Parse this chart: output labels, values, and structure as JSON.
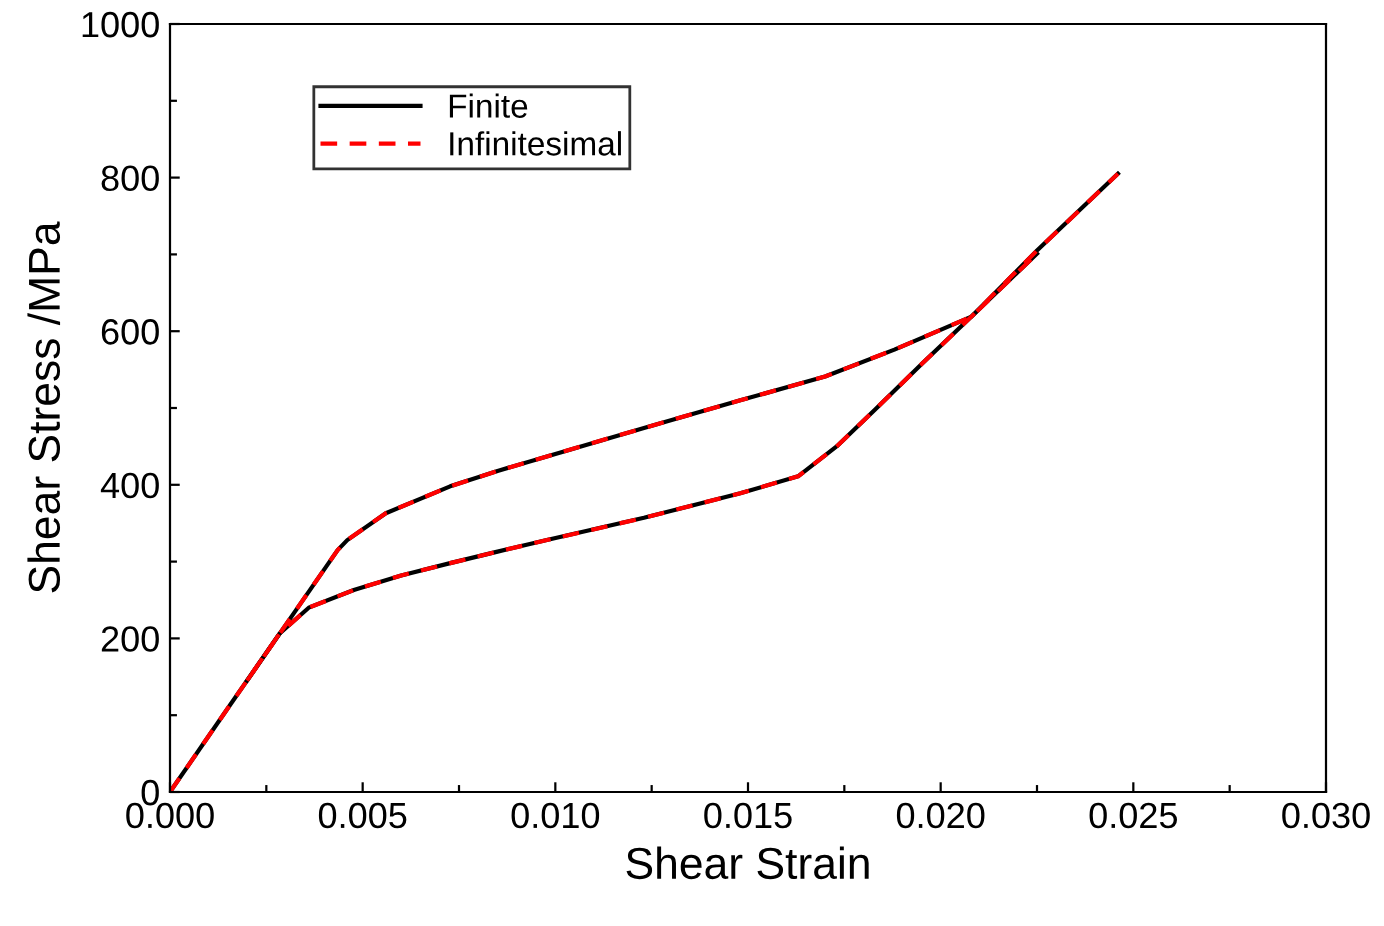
{
  "chart_data": {
    "type": "line",
    "xlabel": "Shear Strain",
    "ylabel": "Shear Stress /MPa",
    "xlim": [
      0,
      0.03
    ],
    "ylim": [
      0,
      1000
    ],
    "xticks": [
      {
        "value": 0,
        "label": "0.000"
      },
      {
        "value": 0.0025,
        "label": null
      },
      {
        "value": 0.005,
        "label": "0.005"
      },
      {
        "value": 0.0075,
        "label": null
      },
      {
        "value": 0.01,
        "label": "0.010"
      },
      {
        "value": 0.0125,
        "label": null
      },
      {
        "value": 0.015,
        "label": "0.015"
      },
      {
        "value": 0.0175,
        "label": null
      },
      {
        "value": 0.02,
        "label": "0.020"
      },
      {
        "value": 0.0225,
        "label": null
      },
      {
        "value": 0.025,
        "label": "0.025"
      },
      {
        "value": 0.0275,
        "label": null
      },
      {
        "value": 0.03,
        "label": "0.030"
      }
    ],
    "yticks": [
      0,
      {
        "value": 100,
        "label": null
      },
      200,
      {
        "value": 300,
        "label": null
      },
      400,
      {
        "value": 500,
        "label": null
      },
      600,
      {
        "value": 700,
        "label": null
      },
      800,
      {
        "value": 900,
        "label": null
      },
      1000
    ],
    "legend": "top left",
    "grid": false,
    "marker": "none",
    "series": [
      {
        "name": "Finite",
        "color": "#000000",
        "line_style": "solid",
        "x": [
          0,
          0.0015,
          0.00284,
          0.0036,
          0.00477,
          0.006,
          0.00727,
          0.0085,
          0.00978,
          0.0123,
          0.0148,
          0.0163,
          0.0173,
          0.0183,
          0.0195,
          0.0208,
          0.0225,
          0.0246
        ],
        "values": [
          0,
          109,
          206,
          240,
          263,
          282,
          298,
          313,
          328,
          357,
          389,
          411,
          450,
          498,
          557,
          619,
          705,
          805
        ]
      },
      {
        "color": "#000000",
        "line_style": "solid",
        "x": [
          0.002,
          0.00435,
          0.0046,
          0.0056,
          0.00727,
          0.0085,
          0.00978,
          0.0123,
          0.0148,
          0.017,
          0.0188,
          0.0208,
          0.0225
        ],
        "values": [
          145,
          315,
          328,
          363,
          398,
          418,
          437,
          474,
          510,
          541,
          576,
          619,
          701
        ]
      },
      {
        "name": "Infinitesimal",
        "color": "#ff0000",
        "line_style": "dashed",
        "x": [
          0,
          0.0015,
          0.00284,
          0.0036,
          0.00477,
          0.006,
          0.00727,
          0.0085,
          0.00978,
          0.0123,
          0.0148,
          0.0163,
          0.0173,
          0.0183,
          0.0195,
          0.0208,
          0.0225,
          0.0246
        ],
        "values": [
          0,
          109,
          206,
          240,
          263,
          282,
          298,
          313,
          328,
          357,
          389,
          411,
          450,
          498,
          557,
          619,
          705,
          805
        ]
      },
      {
        "color": "#ff0000",
        "line_style": "dashed",
        "x": [
          0.002,
          0.00435,
          0.0046,
          0.0056,
          0.00727,
          0.0085,
          0.00978,
          0.0123,
          0.0148,
          0.017,
          0.0188,
          0.0208,
          0.0225
        ],
        "values": [
          145,
          315,
          328,
          363,
          398,
          418,
          437,
          474,
          510,
          541,
          576,
          619,
          701
        ]
      }
    ]
  }
}
